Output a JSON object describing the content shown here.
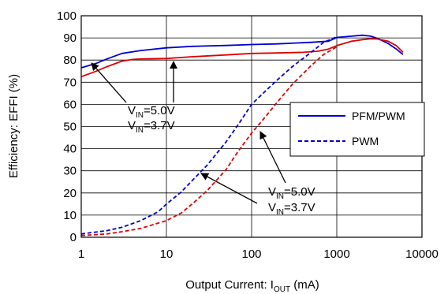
{
  "chart_data": {
    "type": "line",
    "title": "",
    "xlabel": {
      "main": "Output Current: I",
      "sub": "OUT",
      "unit": " (mA)"
    },
    "ylabel": "Efficiency: EFFI (%)",
    "x_scale": "log",
    "xlim": [
      1,
      10000
    ],
    "ylim": [
      0,
      100
    ],
    "x_ticks": [
      1,
      10,
      100,
      1000,
      10000
    ],
    "x_tick_labels": [
      "1",
      "10",
      "100",
      "1000",
      "10000"
    ],
    "y_ticks": [
      0,
      10,
      20,
      30,
      40,
      50,
      60,
      70,
      80,
      90,
      100
    ],
    "y_tick_labels": [
      "0",
      "10",
      "20",
      "30",
      "40",
      "50",
      "60",
      "70",
      "80",
      "90",
      "100"
    ],
    "grid": true,
    "legend": {
      "placement": "right",
      "entries": [
        {
          "label": "PFM/PWM",
          "style": "solid",
          "color": "#0000cc"
        },
        {
          "label": "PWM",
          "style": "dashed",
          "color": "#0000cc"
        }
      ]
    },
    "series": [
      {
        "vin": "5.0V",
        "mode": "PFM/PWM",
        "color": "#0000cc",
        "style": "solid",
        "x": [
          1,
          1.5,
          2,
          3,
          5,
          10,
          20,
          50,
          100,
          200,
          500,
          800,
          1000,
          1500,
          2000,
          2500,
          3000,
          4000,
          5000,
          6000
        ],
        "y": [
          76.5,
          78.5,
          80.5,
          83,
          84.3,
          85.5,
          86.2,
          86.6,
          87,
          87.3,
          88,
          88.5,
          90.2,
          90.8,
          91.2,
          90.8,
          89.8,
          87.5,
          85,
          82.5
        ]
      },
      {
        "vin": "3.7V",
        "mode": "PFM/PWM",
        "color": "#dd0000",
        "style": "solid",
        "x": [
          1,
          1.5,
          2,
          3,
          4,
          5,
          10,
          20,
          50,
          100,
          200,
          400,
          600,
          800,
          1000,
          1500,
          2000,
          2500,
          3000,
          4000,
          5000,
          6000
        ],
        "y": [
          72.5,
          75,
          77,
          79.5,
          80.3,
          80.5,
          80.7,
          81.5,
          82.3,
          83,
          83.2,
          83.5,
          84,
          85,
          86.5,
          88.5,
          89.2,
          89.6,
          89.5,
          88.5,
          86.5,
          83.5
        ]
      },
      {
        "vin": "5.0V",
        "mode": "PWM",
        "color": "#0000cc",
        "style": "dashed",
        "x": [
          1,
          2,
          3,
          5,
          8,
          10,
          15,
          20,
          30,
          50,
          70,
          100,
          150,
          200,
          300,
          500,
          700,
          1000
        ],
        "y": [
          1.5,
          3,
          4.5,
          7.5,
          11.5,
          15,
          20.5,
          25.5,
          32.5,
          43,
          51,
          60,
          66.5,
          71,
          77,
          83.5,
          88,
          90.5
        ]
      },
      {
        "vin": "3.7V",
        "mode": "PWM",
        "color": "#dd0000",
        "style": "dashed",
        "x": [
          1,
          2,
          3,
          5,
          10,
          15,
          20,
          30,
          50,
          70,
          100,
          150,
          200,
          300,
          500,
          700,
          1000
        ],
        "y": [
          0.8,
          1.5,
          2.5,
          4,
          7.5,
          11,
          15,
          21,
          30.5,
          39,
          47,
          55,
          61,
          69,
          77.5,
          82.5,
          86
        ]
      }
    ],
    "annotations": [
      {
        "main": "V",
        "sub": "IN",
        "value": "=5.0V",
        "group": "upper"
      },
      {
        "main": "V",
        "sub": "IN",
        "value": "=3.7V",
        "group": "upper"
      },
      {
        "main": "V",
        "sub": "IN",
        "value": "=5.0V",
        "group": "lower"
      },
      {
        "main": "V",
        "sub": "IN",
        "value": "=3.7V",
        "group": "lower"
      }
    ]
  }
}
